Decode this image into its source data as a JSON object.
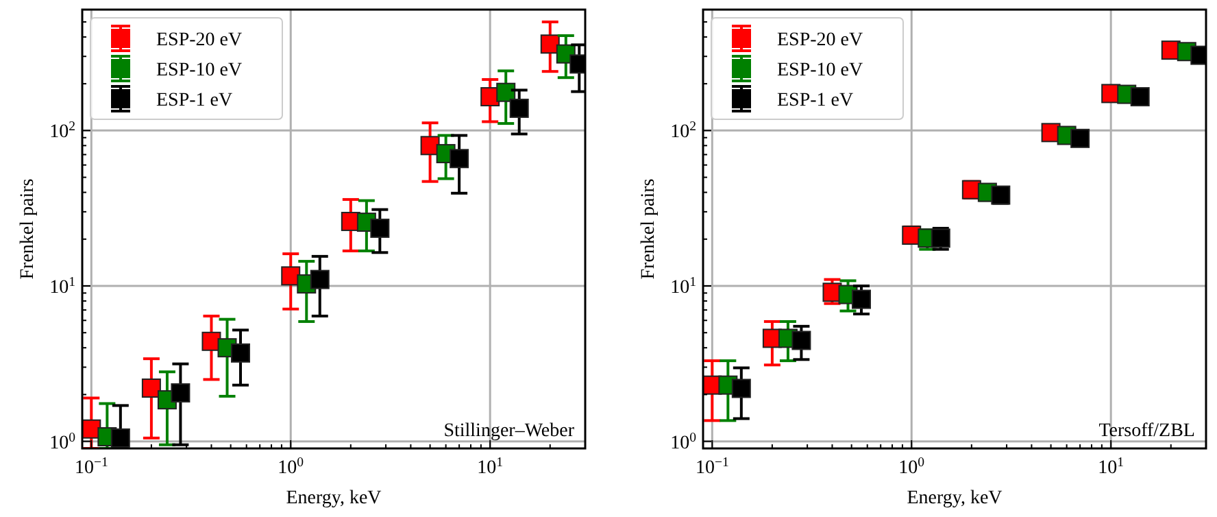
{
  "chart_data": [
    {
      "type": "scatter",
      "xlabel": "Energy, keV",
      "ylabel": "Frenkel pairs",
      "log": "xy",
      "grid": true,
      "legend": "top left",
      "marker": "square",
      "line_style": "none",
      "xlim": [
        0.09,
        30
      ],
      "ylim": [
        0.9,
        600
      ],
      "xticks": [
        {
          "value": 0.1,
          "label": "10$^{−1}$"
        },
        {
          "value": 1,
          "label": "10$^{0}$"
        },
        {
          "value": 10,
          "label": "10$^{1}$"
        }
      ],
      "yticks": [
        {
          "value": 1,
          "label": "10$^{0}$"
        },
        {
          "value": 10,
          "label": "10$^{1}$"
        },
        {
          "value": 100,
          "label": "10$^{2}$"
        }
      ],
      "annotations": [
        "Stillinger–Weber"
      ],
      "series": [
        {
          "name": "ESP-20 eV",
          "color": "#ff0000",
          "x": [
            0.1,
            0.2,
            0.4,
            1,
            2,
            5,
            10,
            20
          ],
          "values": [
            1.2,
            2.2,
            4.4,
            11.6,
            26,
            80,
            165,
            360
          ],
          "errors": [
            [
              0.9,
              1.9
            ],
            [
              1.05,
              3.4
            ],
            [
              2.5,
              6.4
            ],
            [
              7.1,
              16.1
            ],
            [
              16.8,
              36
            ],
            [
              47,
              112
            ],
            [
              114,
              213
            ],
            [
              240,
              500
            ]
          ]
        },
        {
          "name": "ESP-10 eV",
          "color": "#008000",
          "x": [
            0.12,
            0.24,
            0.48,
            1.2,
            2.4,
            6,
            12,
            24
          ],
          "values": [
            1.07,
            1.85,
            4.0,
            10.3,
            25.7,
            71,
            176,
            311
          ],
          "errors": [
            [
              0.9,
              1.75
            ],
            [
              0.95,
              2.8
            ],
            [
              1.95,
              6.1
            ],
            [
              5.9,
              14.4
            ],
            [
              16.8,
              35.4
            ],
            [
              49,
              93
            ],
            [
              111,
              242
            ],
            [
              219,
              408
            ]
          ]
        },
        {
          "name": "ESP-1 eV",
          "color": "#000000",
          "x": [
            0.14,
            0.28,
            0.56,
            1.4,
            2.8,
            7,
            14,
            28
          ],
          "values": [
            1.05,
            2.05,
            3.7,
            11,
            23.5,
            66,
            139,
            268
          ],
          "errors": [
            [
              0.9,
              1.7
            ],
            [
              0.95,
              3.15
            ],
            [
              2.3,
              5.2
            ],
            [
              6.4,
              15.5
            ],
            [
              16.4,
              31
            ],
            [
              39.5,
              93
            ],
            [
              95,
              182
            ],
            [
              178,
              356
            ]
          ]
        }
      ]
    },
    {
      "type": "scatter",
      "xlabel": "Energy, keV",
      "ylabel": "Frenkel pairs",
      "log": "xy",
      "grid": true,
      "legend": "top left",
      "marker": "square",
      "line_style": "none",
      "xlim": [
        0.09,
        30
      ],
      "ylim": [
        0.9,
        600
      ],
      "xticks": [
        {
          "value": 0.1,
          "label": "10$^{−1}$"
        },
        {
          "value": 1,
          "label": "10$^{0}$"
        },
        {
          "value": 10,
          "label": "10$^{1}$"
        }
      ],
      "yticks": [
        {
          "value": 1,
          "label": "10$^{0}$"
        },
        {
          "value": 10,
          "label": "10$^{1}$"
        },
        {
          "value": 100,
          "label": "10$^{2}$"
        }
      ],
      "annotations": [
        "Tersoff/ZBL"
      ],
      "series": [
        {
          "name": "ESP-20 eV",
          "color": "#ff0000",
          "x": [
            0.1,
            0.2,
            0.4,
            1,
            2,
            5,
            10,
            20
          ],
          "values": [
            2.3,
            4.6,
            9.1,
            21.2,
            41.6,
            97,
            173,
            329
          ],
          "errors": [
            [
              1.36,
              3.3
            ],
            [
              3.1,
              5.9
            ],
            [
              7.7,
              11
            ],
            [
              18.8,
              24
            ],
            [
              36.8,
              47
            ],
            [
              87,
              108
            ],
            [
              156,
              194
            ],
            [
              297,
              364
            ]
          ]
        },
        {
          "name": "ESP-10 eV",
          "color": "#008000",
          "x": [
            0.12,
            0.24,
            0.48,
            1.2,
            2.4,
            6,
            12,
            24
          ],
          "values": [
            2.3,
            4.6,
            8.8,
            20.3,
            40,
            93,
            171,
            322
          ],
          "errors": [
            [
              1.36,
              3.3
            ],
            [
              3.3,
              5.9
            ],
            [
              6.9,
              10.8
            ],
            [
              17.2,
              23
            ],
            [
              35.5,
              45
            ],
            [
              84,
              104
            ],
            [
              152,
              190
            ],
            [
              290,
              355
            ]
          ]
        },
        {
          "name": "ESP-1 eV",
          "color": "#000000",
          "x": [
            0.14,
            0.28,
            0.56,
            1.4,
            2.8,
            7,
            14,
            28
          ],
          "values": [
            2.19,
            4.46,
            8.2,
            20.3,
            38.4,
            89,
            165,
            305
          ],
          "errors": [
            [
              1.4,
              2.97
            ],
            [
              3.36,
              5.5
            ],
            [
              6.6,
              10
            ],
            [
              17.2,
              23.5
            ],
            [
              34,
              43
            ],
            [
              80,
              98
            ],
            [
              150,
              181
            ],
            [
              275,
              335
            ]
          ]
        }
      ]
    }
  ]
}
